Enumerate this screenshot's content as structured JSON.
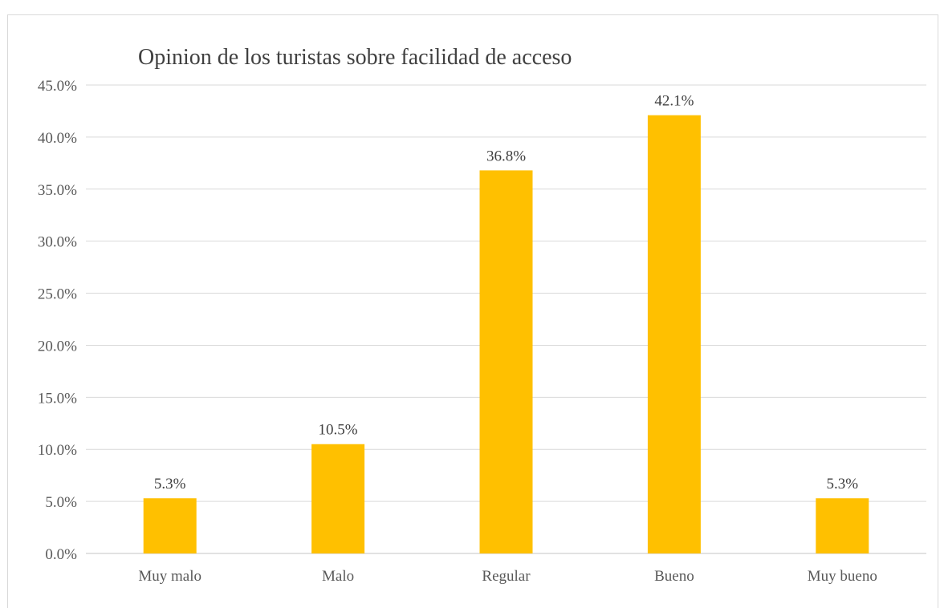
{
  "chart_data": {
    "type": "bar",
    "title": "Opinion de los turistas sobre facilidad de acceso",
    "xlabel": "",
    "ylabel": "",
    "categories": [
      "Muy malo",
      "Malo",
      "Regular",
      "Bueno",
      "Muy bueno"
    ],
    "values": [
      5.3,
      10.5,
      36.8,
      42.1,
      5.3
    ],
    "data_labels": [
      "5.3%",
      "10.5%",
      "36.8%",
      "42.1%",
      "5.3%"
    ],
    "ylim": [
      0,
      45
    ],
    "yticks": [
      0,
      5,
      10,
      15,
      20,
      25,
      30,
      35,
      40,
      45
    ],
    "ytick_labels": [
      "0.0%",
      "5.0%",
      "10.0%",
      "15.0%",
      "20.0%",
      "25.0%",
      "30.0%",
      "35.0%",
      "40.0%",
      "45.0%"
    ],
    "grid": true,
    "legend": "none",
    "colors": {
      "bar": "#ffc000",
      "grid": "#d9d9d9",
      "axis": "#d9d9d9"
    }
  }
}
